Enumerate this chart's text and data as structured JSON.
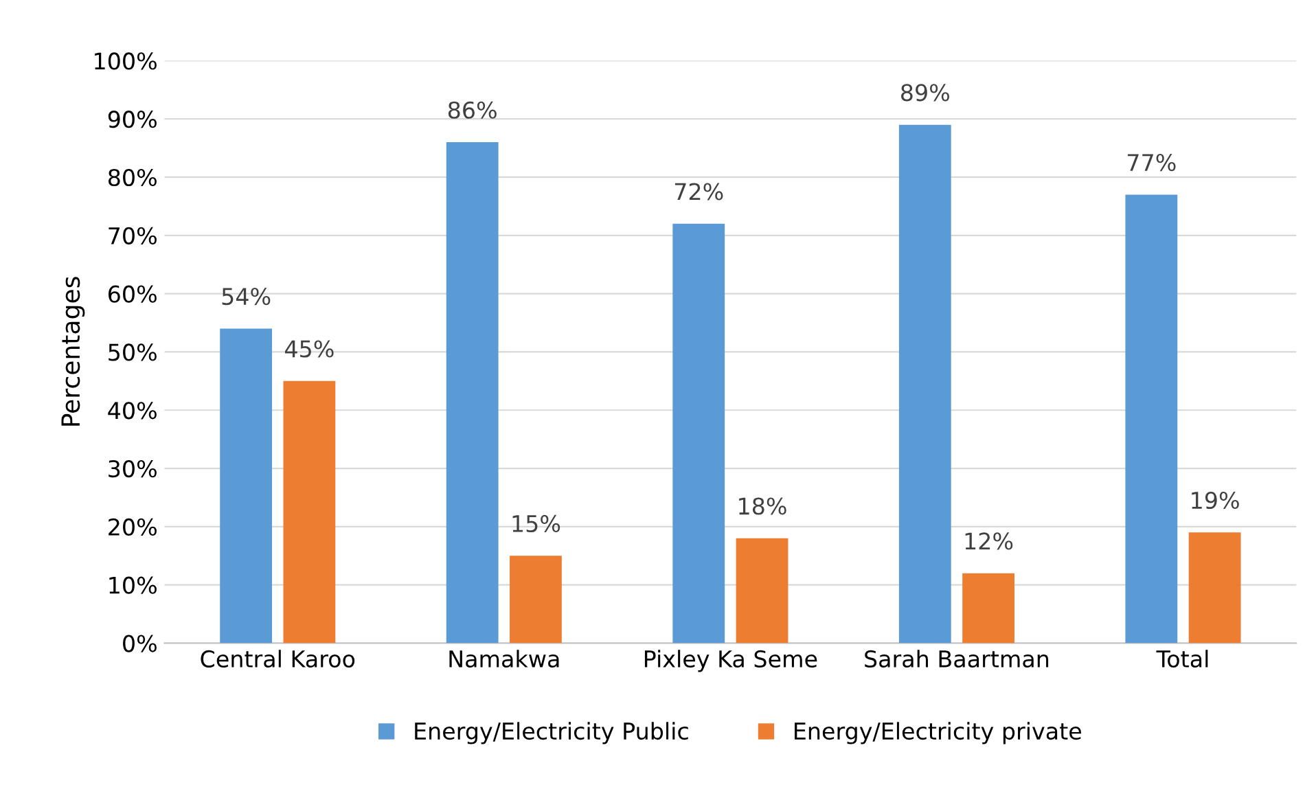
{
  "chart_data": {
    "type": "bar",
    "ylabel": "Percentages",
    "categories": [
      "Central Karoo",
      "Namakwa",
      "Pixley Ka Seme",
      "Sarah Baartman",
      "Total"
    ],
    "series": [
      {
        "name": "Energy/Electricity Public",
        "color": "#5b9bd5",
        "values": [
          54,
          86,
          72,
          89,
          77
        ],
        "value_labels": [
          "54%",
          "86%",
          "72%",
          "89%",
          "77%"
        ]
      },
      {
        "name": "Energy/Electricity private",
        "color": "#ed7d31",
        "values": [
          45,
          15,
          18,
          12,
          19
        ],
        "value_labels": [
          "45%",
          "15%",
          "18%",
          "12%",
          "19%"
        ]
      }
    ],
    "ylim": [
      0,
      100
    ],
    "yticks": [
      {
        "value": 0,
        "label": "0%"
      },
      {
        "value": 10,
        "label": "10%"
      },
      {
        "value": 20,
        "label": "20%"
      },
      {
        "value": 30,
        "label": "30%"
      },
      {
        "value": 40,
        "label": "40%"
      },
      {
        "value": 50,
        "label": "50%"
      },
      {
        "value": 60,
        "label": "60%"
      },
      {
        "value": 70,
        "label": "70%"
      },
      {
        "value": 80,
        "label": "80%"
      },
      {
        "value": 90,
        "label": "90%"
      },
      {
        "value": 100,
        "label": "100%"
      }
    ],
    "grid": "y",
    "legend": "bottom"
  }
}
